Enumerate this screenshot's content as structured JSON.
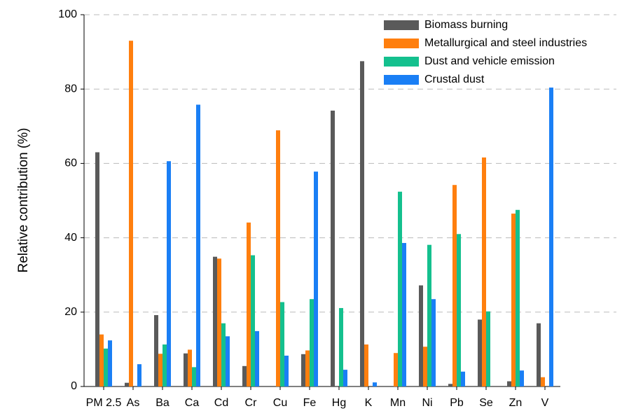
{
  "chart_data": {
    "type": "bar",
    "y_label": "Relative contribution (%)",
    "categories": [
      "PM 2.5",
      "As",
      "Ba",
      "Ca",
      "Cd",
      "Cr",
      "Cu",
      "Fe",
      "Hg",
      "K",
      "Mn",
      "Ni",
      "Pb",
      "Se",
      "Zn",
      "V"
    ],
    "series": [
      {
        "name": "Biomass burning",
        "color": "#5a5a5a",
        "values": [
          63,
          1,
          19.2,
          8.9,
          34.9,
          5.5,
          0,
          8.7,
          74.2,
          87.5,
          0,
          27.2,
          0.7,
          18,
          1.4,
          17
        ]
      },
      {
        "name": "Metallurgical and steel industries",
        "color": "#ff7f0e",
        "values": [
          14,
          93,
          8.8,
          9.9,
          34.4,
          44.1,
          68.9,
          9.7,
          0,
          11.3,
          9,
          10.7,
          54.2,
          61.6,
          46.5,
          2.5
        ]
      },
      {
        "name": "Dust and vehicle emission",
        "color": "#14c08e",
        "values": [
          10.2,
          0,
          11.3,
          5.2,
          17,
          35.3,
          22.7,
          23.5,
          21.1,
          0,
          52.4,
          38.1,
          41,
          20.2,
          47.5,
          0
        ]
      },
      {
        "name": "Crustal dust",
        "color": "#1a7ff5",
        "values": [
          12.4,
          6,
          60.6,
          75.8,
          13.5,
          14.9,
          8.3,
          57.8,
          4.5,
          1.1,
          38.6,
          23.5,
          4,
          0,
          4.3,
          80.4
        ]
      }
    ],
    "ylim": [
      0,
      100
    ],
    "yticks": [
      0,
      20,
      40,
      60,
      80,
      100
    ],
    "grid": true,
    "legend": "top-right"
  }
}
